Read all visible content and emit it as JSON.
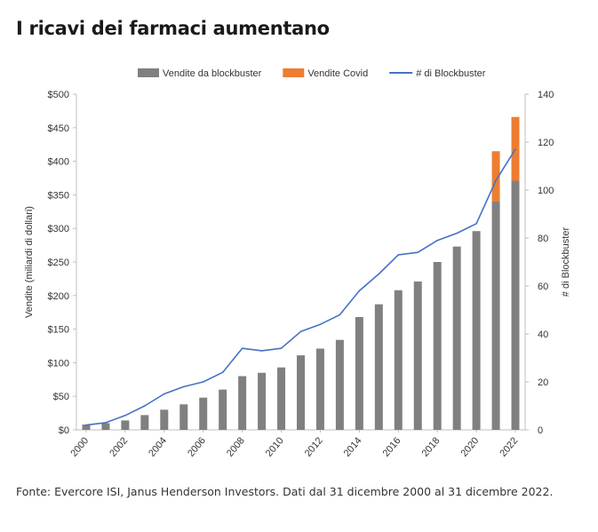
{
  "page": {
    "title": "I ricavi dei farmaci aumentano",
    "source": "Fonte: Evercore ISI, Janus Henderson Investors. Dati dal 31 dicembre 2000 al 31 dicembre 2022."
  },
  "chart_data": {
    "type": "bar",
    "stacked": true,
    "categories": [
      "2000",
      "2001",
      "2002",
      "2003",
      "2004",
      "2005",
      "2006",
      "2007",
      "2008",
      "2009",
      "2010",
      "2011",
      "2012",
      "2013",
      "2014",
      "2015",
      "2016",
      "2017",
      "2018",
      "2019",
      "2020",
      "2021",
      "2022"
    ],
    "x_tick_labels": [
      "2000",
      "2002",
      "2004",
      "2006",
      "2008",
      "2010",
      "2012",
      "2014",
      "2016",
      "2018",
      "2020",
      "2022"
    ],
    "series": [
      {
        "name": "Vendite da blockbuster",
        "kind": "bar",
        "axis": "left",
        "color": "#808080",
        "values": [
          8,
          10,
          14,
          22,
          30,
          38,
          48,
          60,
          80,
          85,
          93,
          111,
          121,
          134,
          168,
          187,
          208,
          221,
          250,
          273,
          296,
          340,
          371
        ]
      },
      {
        "name": "Vendite Covid",
        "kind": "bar",
        "axis": "left",
        "color": "#ed7d31",
        "values": [
          0,
          0,
          0,
          0,
          0,
          0,
          0,
          0,
          0,
          0,
          0,
          0,
          0,
          0,
          0,
          0,
          0,
          0,
          0,
          0,
          0,
          75,
          95
        ]
      },
      {
        "name": "# di Blockbuster",
        "kind": "line",
        "axis": "right",
        "color": "#4472c4",
        "values": [
          2,
          3,
          6,
          10,
          15,
          18,
          20,
          24,
          34,
          33,
          34,
          41,
          44,
          48,
          58,
          65,
          73,
          74,
          79,
          82,
          86,
          104,
          117
        ]
      }
    ],
    "y_left": {
      "label": "Vendite (miliardi di dollari)",
      "min": 0,
      "max": 500,
      "step": 50,
      "tick_labels": [
        "$0",
        "$50",
        "$100",
        "$150",
        "$200",
        "$250",
        "$300",
        "$350",
        "$400",
        "$450",
        "$500"
      ]
    },
    "y_right": {
      "label": "# di Blockbuster",
      "min": 0,
      "max": 140,
      "step": 20,
      "tick_labels": [
        "0",
        "20",
        "40",
        "60",
        "80",
        "100",
        "120",
        "140"
      ]
    },
    "legend": {
      "position": "top"
    },
    "grid": false
  }
}
